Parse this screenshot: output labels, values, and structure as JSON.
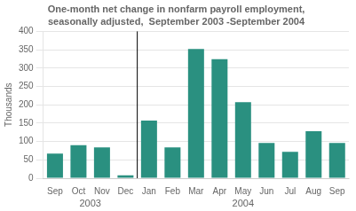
{
  "chart_data": {
    "type": "bar",
    "title": "One-month net change in nonfarm payroll employment,",
    "subtitle": "seasonally adjusted,  September 2003 -September 2004",
    "ylabel": "Thousands",
    "categories": [
      "Sep",
      "Oct",
      "Nov",
      "Dec",
      "Jan",
      "Feb",
      "Mar",
      "Apr",
      "May",
      "Jun",
      "Jul",
      "Aug",
      "Sep"
    ],
    "values": [
      67,
      90,
      84,
      8,
      157,
      84,
      352,
      324,
      207,
      96,
      72,
      128,
      96
    ],
    "color": "#2A9080",
    "ylim": [
      0,
      400
    ],
    "yticks": [
      0,
      50,
      100,
      150,
      200,
      250,
      300,
      350,
      400
    ],
    "grid": true,
    "annotations": [
      {
        "type": "vline",
        "x": 3.5
      },
      {
        "text": "2003",
        "x": 1.5
      },
      {
        "text": "2004",
        "x": 8.0
      }
    ]
  }
}
